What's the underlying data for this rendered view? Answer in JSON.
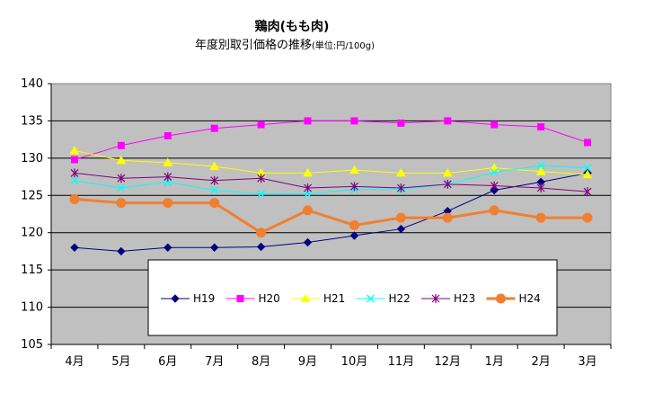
{
  "chart_data": {
    "type": "line",
    "title": "鶏肉(もも肉)",
    "subtitle": "年度別取引価格の推移",
    "subtitle_unit": "(単位:円/100g)",
    "xlabel": "",
    "ylabel": "",
    "categories": [
      "4月",
      "5月",
      "6月",
      "7月",
      "8月",
      "9月",
      "10月",
      "11月",
      "12月",
      "1月",
      "2月",
      "3月"
    ],
    "ylim": [
      105,
      140
    ],
    "yticks": [
      105,
      110,
      115,
      120,
      125,
      130,
      135,
      140
    ],
    "grid": true,
    "legend_position": "bottom-inside",
    "series": [
      {
        "name": "H19",
        "color": "#000080",
        "marker": "diamond",
        "values": [
          118,
          117.5,
          118,
          118,
          118.1,
          118.7,
          119.6,
          120.5,
          122.9,
          125.7,
          126.8,
          128
        ]
      },
      {
        "name": "H20",
        "color": "#ff00ff",
        "marker": "square",
        "values": [
          129.8,
          131.7,
          133,
          134,
          134.5,
          135,
          135,
          134.7,
          135,
          134.5,
          134.2,
          132.1
        ]
      },
      {
        "name": "H21",
        "color": "#ffff00",
        "marker": "triangle",
        "values": [
          131,
          129.7,
          129.4,
          128.9,
          128,
          128,
          128.4,
          128,
          128,
          128.7,
          128.2,
          127.8
        ]
      },
      {
        "name": "H22",
        "color": "#00ffff",
        "marker": "x",
        "values": [
          127,
          126,
          126.8,
          125.7,
          125.2,
          125.2,
          125.8,
          125.8,
          126.5,
          128.1,
          129,
          128.7
        ]
      },
      {
        "name": "H23",
        "color": "#800080",
        "marker": "star",
        "values": [
          128,
          127.3,
          127.5,
          127,
          127.3,
          126,
          126.2,
          126,
          126.5,
          126.3,
          126,
          125.5
        ]
      },
      {
        "name": "H24",
        "color": "#f08030",
        "marker": "circle",
        "values": [
          124.5,
          124,
          124,
          124,
          120,
          123,
          121,
          122,
          122,
          123,
          122,
          122
        ]
      }
    ]
  }
}
